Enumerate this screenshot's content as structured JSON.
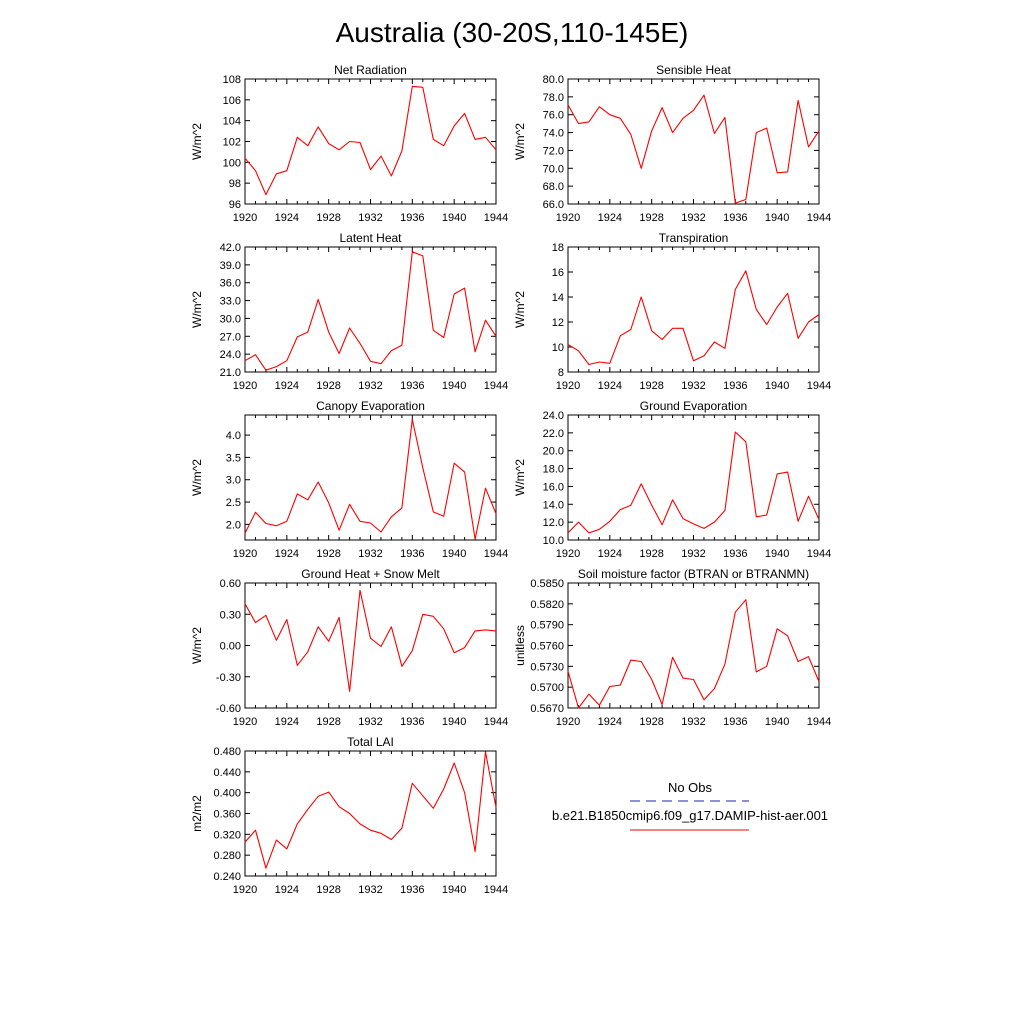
{
  "page_title": "Australia (30-20S,110-145E)",
  "legend": {
    "obs_label": "No Obs",
    "model_label": "b.e21.B1850cmip6.f09_g17.DAMIP-hist-aer.001",
    "obs_color": "#1f1fa8",
    "model_color": "#ff0000",
    "obs_style": "dashed",
    "model_style": "solid"
  },
  "chart_data": [
    {
      "type": "line",
      "title": "Net Radiation",
      "ylabel": "W/m^2",
      "xlim": [
        1920,
        1944
      ],
      "ylim": [
        96,
        108
      ],
      "yticks": [
        96,
        98,
        100,
        102,
        104,
        106,
        108
      ],
      "ytick_labels": [
        "96",
        "98",
        "100",
        "102",
        "104",
        "106",
        "108"
      ],
      "xticks": [
        1920,
        1924,
        1928,
        1932,
        1936,
        1940,
        1944
      ],
      "xtick_labels": [
        "1920",
        "1924",
        "1928",
        "1932",
        "1936",
        "1940",
        "1944"
      ],
      "series": [
        {
          "values": [
            100.4,
            99.2,
            96.9,
            98.9,
            99.2,
            102.4,
            101.6,
            103.4,
            101.8,
            101.2,
            102.0,
            101.9,
            99.3,
            100.6,
            98.7,
            101.1,
            107.3,
            107.2,
            102.2,
            101.6,
            103.5,
            104.7,
            102.2,
            102.4,
            101.2
          ]
        }
      ],
      "x": [
        1920,
        1921,
        1922,
        1923,
        1924,
        1925,
        1926,
        1927,
        1928,
        1929,
        1930,
        1931,
        1932,
        1933,
        1934,
        1935,
        1936,
        1937,
        1938,
        1939,
        1940,
        1941,
        1942,
        1943,
        1944
      ]
    },
    {
      "type": "line",
      "title": "Sensible Heat",
      "ylabel": "W/m^2",
      "xlim": [
        1920,
        1944
      ],
      "ylim": [
        66,
        80
      ],
      "yticks": [
        66,
        68,
        70,
        72,
        74,
        76,
        78,
        80
      ],
      "ytick_labels": [
        "66.0",
        "68.0",
        "70.0",
        "72.0",
        "74.0",
        "76.0",
        "78.0",
        "80.0"
      ],
      "xticks": [
        1920,
        1924,
        1928,
        1932,
        1936,
        1940,
        1944
      ],
      "xtick_labels": [
        "1920",
        "1924",
        "1928",
        "1932",
        "1936",
        "1940",
        "1944"
      ],
      "series": [
        {
          "values": [
            77.1,
            75.0,
            75.2,
            76.9,
            76.0,
            75.6,
            73.8,
            70.0,
            74.2,
            76.8,
            74.0,
            75.6,
            76.5,
            78.2,
            73.9,
            75.7,
            66.1,
            66.5,
            74.0,
            74.5,
            69.5,
            69.6,
            77.6,
            72.4,
            74.2
          ]
        }
      ],
      "x": [
        1920,
        1921,
        1922,
        1923,
        1924,
        1925,
        1926,
        1927,
        1928,
        1929,
        1930,
        1931,
        1932,
        1933,
        1934,
        1935,
        1936,
        1937,
        1938,
        1939,
        1940,
        1941,
        1942,
        1943,
        1944
      ]
    },
    {
      "type": "line",
      "title": "Latent Heat",
      "ylabel": "W/m^2",
      "xlim": [
        1920,
        1944
      ],
      "ylim": [
        21,
        42
      ],
      "yticks": [
        21,
        24,
        27,
        30,
        33,
        36,
        39,
        42
      ],
      "ytick_labels": [
        "21.0",
        "24.0",
        "27.0",
        "30.0",
        "33.0",
        "36.0",
        "39.0",
        "42.0"
      ],
      "xticks": [
        1920,
        1924,
        1928,
        1932,
        1936,
        1940,
        1944
      ],
      "xtick_labels": [
        "1920",
        "1924",
        "1928",
        "1932",
        "1936",
        "1940",
        "1944"
      ],
      "series": [
        {
          "values": [
            22.9,
            23.9,
            21.3,
            21.9,
            22.9,
            26.9,
            27.7,
            33.2,
            27.7,
            24.1,
            28.4,
            25.8,
            22.8,
            22.4,
            24.6,
            25.5,
            41.2,
            40.5,
            28.0,
            26.8,
            34.1,
            35.1,
            24.4,
            29.7,
            27.0
          ]
        }
      ],
      "x": [
        1920,
        1921,
        1922,
        1923,
        1924,
        1925,
        1926,
        1927,
        1928,
        1929,
        1930,
        1931,
        1932,
        1933,
        1934,
        1935,
        1936,
        1937,
        1938,
        1939,
        1940,
        1941,
        1942,
        1943,
        1944
      ]
    },
    {
      "type": "line",
      "title": "Transpiration",
      "ylabel": "W/m^2",
      "xlim": [
        1920,
        1944
      ],
      "ylim": [
        8,
        18
      ],
      "yticks": [
        8,
        10,
        12,
        14,
        16,
        18
      ],
      "ytick_labels": [
        "8",
        "10",
        "12",
        "14",
        "16",
        "18"
      ],
      "xticks": [
        1920,
        1924,
        1928,
        1932,
        1936,
        1940,
        1944
      ],
      "xtick_labels": [
        "1920",
        "1924",
        "1928",
        "1932",
        "1936",
        "1940",
        "1944"
      ],
      "series": [
        {
          "values": [
            10.2,
            9.7,
            8.6,
            8.8,
            8.7,
            10.9,
            11.4,
            14.0,
            11.3,
            10.6,
            11.5,
            11.5,
            8.9,
            9.3,
            10.4,
            9.9,
            14.6,
            16.1,
            13.0,
            11.8,
            13.2,
            14.3,
            10.7,
            12.0,
            12.6
          ]
        }
      ],
      "x": [
        1920,
        1921,
        1922,
        1923,
        1924,
        1925,
        1926,
        1927,
        1928,
        1929,
        1930,
        1931,
        1932,
        1933,
        1934,
        1935,
        1936,
        1937,
        1938,
        1939,
        1940,
        1941,
        1942,
        1943,
        1944
      ]
    },
    {
      "type": "line",
      "title": "Canopy Evaporation",
      "ylabel": "W/m^2",
      "xlim": [
        1920,
        1944
      ],
      "ylim": [
        1.65,
        4.45
      ],
      "yticks": [
        2.0,
        2.5,
        3.0,
        3.5,
        4.0
      ],
      "ytick_labels": [
        "2.0",
        "2.5",
        "3.0",
        "3.5",
        "4.0"
      ],
      "xticks": [
        1920,
        1924,
        1928,
        1932,
        1936,
        1940,
        1944
      ],
      "xtick_labels": [
        "1920",
        "1924",
        "1928",
        "1932",
        "1936",
        "1940",
        "1944"
      ],
      "series": [
        {
          "values": [
            1.8,
            2.27,
            2.02,
            1.97,
            2.07,
            2.68,
            2.55,
            2.95,
            2.48,
            1.87,
            2.45,
            2.07,
            2.03,
            1.83,
            2.17,
            2.37,
            4.35,
            3.27,
            2.28,
            2.18,
            3.37,
            3.17,
            1.67,
            2.81,
            2.24
          ]
        }
      ],
      "x": [
        1920,
        1921,
        1922,
        1923,
        1924,
        1925,
        1926,
        1927,
        1928,
        1929,
        1930,
        1931,
        1932,
        1933,
        1934,
        1935,
        1936,
        1937,
        1938,
        1939,
        1940,
        1941,
        1942,
        1943,
        1944
      ]
    },
    {
      "type": "line",
      "title": "Ground Evaporation",
      "ylabel": "W/m^2",
      "xlim": [
        1920,
        1944
      ],
      "ylim": [
        10,
        24
      ],
      "yticks": [
        10,
        12,
        14,
        16,
        18,
        20,
        22,
        24
      ],
      "ytick_labels": [
        "10.0",
        "12.0",
        "14.0",
        "16.0",
        "18.0",
        "20.0",
        "22.0",
        "24.0"
      ],
      "xticks": [
        1920,
        1924,
        1928,
        1932,
        1936,
        1940,
        1944
      ],
      "xtick_labels": [
        "1920",
        "1924",
        "1928",
        "1932",
        "1936",
        "1940",
        "1944"
      ],
      "series": [
        {
          "values": [
            10.8,
            12.0,
            10.8,
            11.2,
            12.1,
            13.4,
            13.9,
            16.3,
            13.9,
            11.7,
            14.5,
            12.4,
            11.8,
            11.3,
            12.0,
            13.3,
            22.1,
            21.0,
            12.6,
            12.8,
            17.4,
            17.6,
            12.1,
            14.9,
            12.3
          ]
        }
      ],
      "x": [
        1920,
        1921,
        1922,
        1923,
        1924,
        1925,
        1926,
        1927,
        1928,
        1929,
        1930,
        1931,
        1932,
        1933,
        1934,
        1935,
        1936,
        1937,
        1938,
        1939,
        1940,
        1941,
        1942,
        1943,
        1944
      ]
    },
    {
      "type": "line",
      "title": "Ground Heat + Snow Melt",
      "ylabel": "W/m^2",
      "xlim": [
        1920,
        1944
      ],
      "ylim": [
        -0.6,
        0.6
      ],
      "yticks": [
        -0.6,
        -0.3,
        0.0,
        0.3,
        0.6
      ],
      "ytick_labels": [
        "-0.60",
        "-0.30",
        "0.00",
        "0.30",
        "0.60"
      ],
      "xticks": [
        1920,
        1924,
        1928,
        1932,
        1936,
        1940,
        1944
      ],
      "xtick_labels": [
        "1920",
        "1924",
        "1928",
        "1932",
        "1936",
        "1940",
        "1944"
      ],
      "series": [
        {
          "values": [
            0.4,
            0.22,
            0.29,
            0.05,
            0.25,
            -0.19,
            -0.06,
            0.18,
            0.04,
            0.27,
            -0.44,
            0.53,
            0.07,
            -0.01,
            0.18,
            -0.2,
            -0.05,
            0.3,
            0.28,
            0.16,
            -0.07,
            -0.02,
            0.14,
            0.15,
            0.14
          ]
        }
      ],
      "x": [
        1920,
        1921,
        1922,
        1923,
        1924,
        1925,
        1926,
        1927,
        1928,
        1929,
        1930,
        1931,
        1932,
        1933,
        1934,
        1935,
        1936,
        1937,
        1938,
        1939,
        1940,
        1941,
        1942,
        1943,
        1944
      ]
    },
    {
      "type": "line",
      "title": "Soil moisture factor (BTRAN or BTRANMN)",
      "ylabel": "unitless",
      "xlim": [
        1920,
        1944
      ],
      "ylim": [
        0.567,
        0.585
      ],
      "yticks": [
        0.567,
        0.57,
        0.573,
        0.576,
        0.579,
        0.582,
        0.585
      ],
      "ytick_labels": [
        "0.5670",
        "0.5700",
        "0.5730",
        "0.5760",
        "0.5790",
        "0.5820",
        "0.5850"
      ],
      "xticks": [
        1920,
        1924,
        1928,
        1932,
        1936,
        1940,
        1944
      ],
      "xtick_labels": [
        "1920",
        "1924",
        "1928",
        "1932",
        "1936",
        "1940",
        "1944"
      ],
      "series": [
        {
          "values": [
            0.5723,
            0.567,
            0.569,
            0.5674,
            0.5701,
            0.5703,
            0.5739,
            0.5737,
            0.5711,
            0.5675,
            0.5743,
            0.5713,
            0.5711,
            0.5682,
            0.5698,
            0.5733,
            0.5808,
            0.5826,
            0.5722,
            0.573,
            0.5784,
            0.5774,
            0.5737,
            0.5744,
            0.5708
          ]
        }
      ],
      "x": [
        1920,
        1921,
        1922,
        1923,
        1924,
        1925,
        1926,
        1927,
        1928,
        1929,
        1930,
        1931,
        1932,
        1933,
        1934,
        1935,
        1936,
        1937,
        1938,
        1939,
        1940,
        1941,
        1942,
        1943,
        1944
      ]
    },
    {
      "type": "line",
      "title": "Total LAI",
      "ylabel": "m2/m2",
      "xlim": [
        1920,
        1944
      ],
      "ylim": [
        0.24,
        0.48
      ],
      "yticks": [
        0.24,
        0.28,
        0.32,
        0.36,
        0.4,
        0.44,
        0.48
      ],
      "ytick_labels": [
        "0.240",
        "0.280",
        "0.320",
        "0.360",
        "0.400",
        "0.440",
        "0.480"
      ],
      "xticks": [
        1920,
        1924,
        1928,
        1932,
        1936,
        1940,
        1944
      ],
      "xtick_labels": [
        "1920",
        "1924",
        "1928",
        "1932",
        "1936",
        "1940",
        "1944"
      ],
      "series": [
        {
          "values": [
            0.305,
            0.328,
            0.255,
            0.309,
            0.292,
            0.34,
            0.368,
            0.393,
            0.401,
            0.373,
            0.36,
            0.34,
            0.328,
            0.322,
            0.31,
            0.332,
            0.418,
            0.394,
            0.37,
            0.407,
            0.457,
            0.4,
            0.287,
            0.478,
            0.372
          ]
        }
      ],
      "x": [
        1920,
        1921,
        1922,
        1923,
        1924,
        1925,
        1926,
        1927,
        1928,
        1929,
        1930,
        1931,
        1932,
        1933,
        1934,
        1935,
        1936,
        1937,
        1938,
        1939,
        1940,
        1941,
        1942,
        1943,
        1944
      ]
    }
  ]
}
